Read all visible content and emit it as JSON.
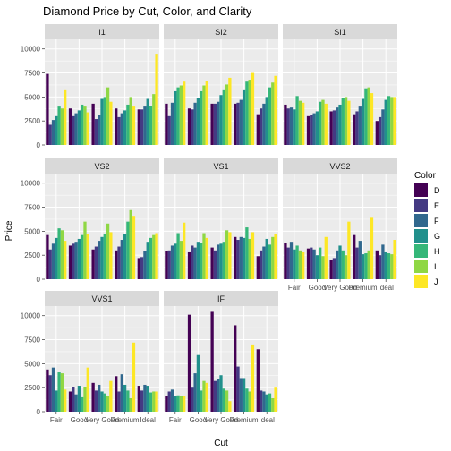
{
  "chart_data": {
    "type": "bar",
    "title": "Diamond Price by Cut, Color, and Clarity",
    "xlabel": "Cut",
    "ylabel": "Price",
    "facet_by": "Clarity",
    "categories": [
      "Fair",
      "Good",
      "Very Good",
      "Premium",
      "Ideal"
    ],
    "y_ticks": [
      0,
      2500,
      5000,
      7500,
      10000
    ],
    "ylim": [
      0,
      11000
    ],
    "legend": {
      "title": "Color",
      "position": "right"
    },
    "colors": [
      "D",
      "E",
      "F",
      "G",
      "H",
      "I",
      "J"
    ],
    "palette": [
      "#440154",
      "#443A83",
      "#31688E",
      "#21908C",
      "#35B779",
      "#8FD744",
      "#FDE725"
    ],
    "facets": [
      {
        "label": "I1",
        "values": [
          [
            7400,
            2100,
            2600,
            3000,
            4000,
            3800,
            5700
          ],
          [
            3800,
            3000,
            3300,
            3600,
            4200,
            4000,
            3400
          ],
          [
            4300,
            2700,
            3100,
            4800,
            5000,
            6000,
            4500
          ],
          [
            3800,
            2900,
            3300,
            3600,
            4200,
            5000,
            4000
          ],
          [
            3700,
            3700,
            4000,
            4800,
            4100,
            5300,
            9500
          ]
        ]
      },
      {
        "label": "SI2",
        "values": [
          [
            4300,
            3000,
            4400,
            5600,
            6000,
            6200,
            6600
          ],
          [
            3800,
            3700,
            4400,
            4900,
            5600,
            6200,
            6700
          ],
          [
            4300,
            4300,
            4500,
            5200,
            5700,
            6300,
            7000
          ],
          [
            4300,
            4400,
            4700,
            5700,
            6600,
            6800,
            7500
          ],
          [
            3200,
            3800,
            4300,
            5000,
            6000,
            6500,
            7200
          ]
        ]
      },
      {
        "label": "SI1",
        "values": [
          [
            4200,
            3800,
            3900,
            3700,
            5100,
            4600,
            4400
          ],
          [
            3000,
            3100,
            3300,
            3500,
            4500,
            4700,
            4300
          ],
          [
            3500,
            3600,
            3900,
            4200,
            4900,
            5000,
            4600
          ],
          [
            3200,
            3500,
            4000,
            4800,
            5900,
            6000,
            5400
          ],
          [
            2500,
            2900,
            3700,
            4700,
            5100,
            5000,
            5000
          ]
        ]
      },
      {
        "label": "VS2",
        "values": [
          [
            4600,
            3100,
            3700,
            4300,
            5300,
            5100,
            4000
          ],
          [
            3500,
            3700,
            3900,
            4200,
            4600,
            6000,
            4700
          ],
          [
            3100,
            3400,
            4000,
            4400,
            4700,
            5800,
            4900
          ],
          [
            3000,
            3400,
            4100,
            4700,
            6000,
            7200,
            6600
          ],
          [
            2200,
            2300,
            2900,
            3900,
            4300,
            4600,
            4800
          ]
        ]
      },
      {
        "label": "VS1",
        "values": [
          [
            2900,
            3000,
            3500,
            3700,
            4800,
            4000,
            5900
          ],
          [
            2800,
            3500,
            3300,
            3900,
            3800,
            4800,
            4300
          ],
          [
            3300,
            3000,
            3600,
            3700,
            3900,
            5100,
            4900
          ],
          [
            4400,
            4100,
            4400,
            4300,
            5400,
            4200,
            4900
          ],
          [
            2400,
            3000,
            3400,
            4200,
            3600,
            4400,
            4700
          ]
        ]
      },
      {
        "label": "VVS2",
        "values": [
          [
            3800,
            3300,
            3900,
            3100,
            3500,
            3000,
            2800
          ],
          [
            3200,
            3300,
            3100,
            2500,
            3300,
            2400,
            4400
          ],
          [
            2000,
            2200,
            3000,
            3500,
            3000,
            2500,
            6000
          ],
          [
            4600,
            3300,
            4000,
            2600,
            2700,
            3000,
            6400
          ],
          [
            3000,
            2500,
            3600,
            2800,
            2700,
            2600,
            4100
          ]
        ]
      },
      {
        "label": "VVS1",
        "values": [
          [
            4400,
            3800,
            4600,
            2200,
            4100,
            4000,
            2300
          ],
          [
            2100,
            2600,
            1800,
            2700,
            1500,
            2600,
            4600
          ],
          [
            3000,
            2200,
            2800,
            2100,
            1900,
            1600,
            3200
          ],
          [
            3700,
            2100,
            3900,
            2800,
            2200,
            1400,
            7200
          ],
          [
            2700,
            2200,
            2800,
            2700,
            2000,
            2100,
            2100
          ]
        ]
      },
      {
        "label": "IF",
        "values": [
          [
            1600,
            2100,
            2300,
            1600,
            1700,
            1600,
            1600
          ],
          [
            10100,
            2500,
            4000,
            5900,
            2200,
            3200,
            3000
          ],
          [
            10400,
            3200,
            3400,
            3800,
            2400,
            2200,
            1100
          ],
          [
            9000,
            4700,
            3500,
            3500,
            2400,
            2100,
            7000
          ],
          [
            6500,
            2200,
            2100,
            1800,
            1900,
            1400,
            2500
          ]
        ]
      }
    ]
  }
}
